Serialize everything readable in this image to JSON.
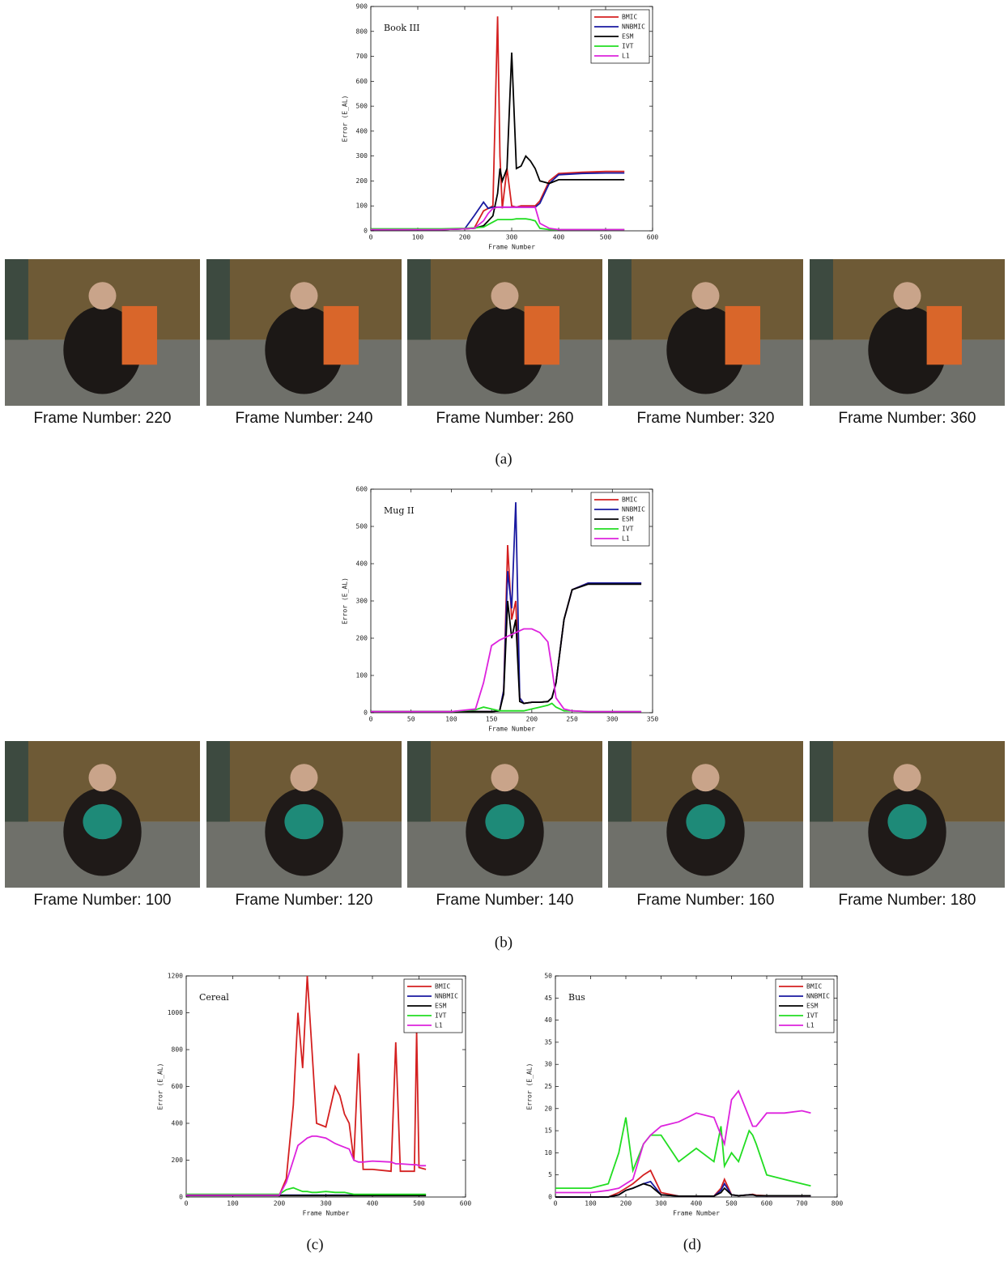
{
  "chart_data": [
    {
      "type": "line",
      "title": "Book III",
      "xlabel": "Frame Number",
      "ylabel": "Error (E_AL)",
      "xlim": [
        0,
        600
      ],
      "xticks": [
        0,
        100,
        200,
        300,
        400,
        500,
        600
      ],
      "ylim": [
        0,
        900
      ],
      "yticks": [
        0,
        100,
        200,
        300,
        400,
        500,
        600,
        700,
        800,
        900
      ],
      "legend": "upper right",
      "x": [
        0,
        50,
        100,
        150,
        200,
        220,
        240,
        250,
        260,
        270,
        275,
        280,
        290,
        300,
        310,
        320,
        330,
        340,
        350,
        360,
        380,
        400,
        450,
        500,
        540
      ],
      "series": [
        {
          "name": "BMIC",
          "color": "#d42020",
          "values": [
            5,
            5,
            5,
            5,
            8,
            10,
            80,
            90,
            100,
            860,
            300,
            90,
            250,
            100,
            95,
            100,
            100,
            100,
            100,
            120,
            200,
            230,
            235,
            238,
            238
          ]
        },
        {
          "name": "NNBMIC",
          "color": "#1a1aa0",
          "values": [
            5,
            5,
            5,
            5,
            8,
            60,
            115,
            90,
            95,
            95,
            95,
            95,
            95,
            95,
            95,
            95,
            95,
            95,
            95,
            110,
            190,
            225,
            230,
            232,
            232
          ]
        },
        {
          "name": "ESM",
          "color": "#000000",
          "values": [
            5,
            5,
            5,
            5,
            8,
            10,
            20,
            40,
            60,
            150,
            250,
            200,
            250,
            715,
            250,
            260,
            300,
            280,
            250,
            200,
            190,
            205,
            205,
            205,
            205
          ]
        },
        {
          "name": "IVT",
          "color": "#22dd22",
          "values": [
            8,
            8,
            8,
            8,
            10,
            12,
            15,
            25,
            35,
            45,
            45,
            45,
            45,
            45,
            48,
            48,
            48,
            45,
            40,
            10,
            5,
            5,
            5,
            5,
            5
          ]
        },
        {
          "name": "L1",
          "color": "#dd22dd",
          "values": [
            5,
            5,
            5,
            5,
            8,
            10,
            40,
            70,
            90,
            95,
            95,
            95,
            95,
            95,
            95,
            95,
            95,
            95,
            95,
            30,
            10,
            5,
            5,
            5,
            5
          ]
        }
      ]
    },
    {
      "type": "line",
      "title": "Mug II",
      "xlabel": "Frame Number",
      "ylabel": "Error (E_AL)",
      "xlim": [
        0,
        350
      ],
      "xticks": [
        0,
        50,
        100,
        150,
        200,
        250,
        300,
        350
      ],
      "ylim": [
        0,
        600
      ],
      "yticks": [
        0,
        100,
        200,
        300,
        400,
        500,
        600
      ],
      "legend": "upper right",
      "x": [
        0,
        50,
        100,
        130,
        140,
        150,
        160,
        165,
        170,
        175,
        180,
        185,
        190,
        200,
        210,
        220,
        225,
        230,
        240,
        250,
        270,
        300,
        336
      ],
      "series": [
        {
          "name": "BMIC",
          "color": "#d42020",
          "values": [
            3,
            3,
            3,
            3,
            3,
            3,
            5,
            60,
            450,
            250,
            300,
            40,
            25,
            28,
            28,
            30,
            40,
            80,
            250,
            330,
            348,
            348,
            348
          ]
        },
        {
          "name": "NNBMIC",
          "color": "#1a1aa0",
          "values": [
            3,
            3,
            3,
            3,
            3,
            3,
            5,
            60,
            380,
            280,
            565,
            40,
            25,
            28,
            28,
            30,
            40,
            80,
            250,
            330,
            348,
            348,
            348
          ]
        },
        {
          "name": "ESM",
          "color": "#000000",
          "values": [
            3,
            3,
            3,
            3,
            3,
            3,
            5,
            50,
            300,
            200,
            250,
            30,
            25,
            28,
            28,
            30,
            40,
            80,
            250,
            330,
            345,
            345,
            345
          ]
        },
        {
          "name": "IVT",
          "color": "#22dd22",
          "values": [
            3,
            3,
            3,
            8,
            15,
            10,
            5,
            5,
            5,
            5,
            5,
            5,
            5,
            10,
            15,
            20,
            25,
            15,
            5,
            5,
            3,
            3,
            3
          ]
        },
        {
          "name": "L1",
          "color": "#dd22dd",
          "values": [
            3,
            3,
            3,
            10,
            80,
            180,
            195,
            200,
            205,
            210,
            215,
            220,
            225,
            225,
            215,
            190,
            120,
            40,
            10,
            5,
            3,
            3,
            3
          ]
        }
      ]
    },
    {
      "type": "line",
      "title": "Cereal",
      "xlabel": "Frame Number",
      "ylabel": "Error (E_AL)",
      "xlim": [
        0,
        600
      ],
      "xticks": [
        0,
        100,
        200,
        300,
        400,
        500,
        600
      ],
      "ylim": [
        0,
        1200
      ],
      "yticks": [
        0,
        200,
        400,
        600,
        800,
        1000,
        1200
      ],
      "legend": "upper right",
      "x": [
        0,
        100,
        200,
        215,
        230,
        240,
        250,
        260,
        270,
        280,
        300,
        320,
        330,
        340,
        350,
        360,
        370,
        380,
        400,
        440,
        450,
        460,
        490,
        495,
        500,
        515
      ],
      "series": [
        {
          "name": "BMIC",
          "color": "#d42020",
          "values": [
            10,
            10,
            10,
            100,
            500,
            1000,
            700,
            1200,
            800,
            400,
            380,
            600,
            550,
            450,
            400,
            200,
            780,
            150,
            150,
            140,
            840,
            140,
            140,
            900,
            160,
            150
          ]
        },
        {
          "name": "NNBMIC",
          "color": "#1a1aa0",
          "values": [
            10,
            10,
            10,
            10,
            10,
            10,
            10,
            10,
            10,
            10,
            10,
            10,
            10,
            10,
            10,
            10,
            10,
            10,
            10,
            10,
            10,
            10,
            10,
            10,
            10,
            10
          ]
        },
        {
          "name": "ESM",
          "color": "#000000",
          "values": [
            8,
            8,
            8,
            8,
            8,
            8,
            8,
            8,
            8,
            8,
            8,
            8,
            8,
            8,
            8,
            8,
            8,
            8,
            8,
            8,
            8,
            8,
            8,
            8,
            8,
            8
          ]
        },
        {
          "name": "IVT",
          "color": "#22dd22",
          "values": [
            15,
            15,
            15,
            40,
            50,
            40,
            30,
            30,
            25,
            25,
            30,
            25,
            25,
            25,
            20,
            15,
            15,
            15,
            15,
            15,
            15,
            15,
            15,
            15,
            15,
            15
          ]
        },
        {
          "name": "L1",
          "color": "#dd22dd",
          "values": [
            10,
            10,
            10,
            80,
            200,
            280,
            300,
            320,
            330,
            330,
            320,
            290,
            280,
            270,
            260,
            200,
            190,
            190,
            195,
            190,
            180,
            180,
            175,
            175,
            170,
            170
          ]
        }
      ]
    },
    {
      "type": "line",
      "title": "Bus",
      "xlabel": "Frame Number",
      "ylabel": "Error (E_AL)",
      "xlim": [
        0,
        800
      ],
      "xticks": [
        0,
        100,
        200,
        300,
        400,
        500,
        600,
        700,
        800
      ],
      "ylim": [
        0,
        50
      ],
      "yticks": [
        0,
        5,
        10,
        15,
        20,
        25,
        30,
        35,
        40,
        45,
        50
      ],
      "legend": "upper right",
      "x": [
        0,
        50,
        100,
        150,
        180,
        200,
        220,
        250,
        270,
        300,
        350,
        400,
        450,
        470,
        480,
        500,
        520,
        550,
        560,
        570,
        600,
        650,
        700,
        725
      ],
      "series": [
        {
          "name": "BMIC",
          "color": "#d42020",
          "values": [
            0,
            0,
            0,
            0,
            1,
            2,
            3,
            5,
            6,
            1,
            0.2,
            0.2,
            0.2,
            2,
            4,
            0.5,
            0.3,
            0.5,
            0.6,
            0.4,
            0.3,
            0.3,
            0.3,
            0.3
          ]
        },
        {
          "name": "NNBMIC",
          "color": "#1a1aa0",
          "values": [
            0,
            0,
            0,
            0,
            0.5,
            1.5,
            2,
            3,
            3.5,
            0.5,
            0.2,
            0.2,
            0.2,
            1.5,
            3,
            0.5,
            0.3,
            0.5,
            0.5,
            0.3,
            0.3,
            0.3,
            0.3,
            0.3
          ]
        },
        {
          "name": "ESM",
          "color": "#000000",
          "values": [
            0,
            0,
            0,
            0,
            0.5,
            1.5,
            2,
            3,
            2.5,
            0.5,
            0.2,
            0.2,
            0.2,
            1,
            2,
            0.5,
            0.3,
            0.5,
            0.5,
            0.3,
            0.3,
            0.3,
            0.3,
            0.3
          ]
        },
        {
          "name": "IVT",
          "color": "#22dd22",
          "values": [
            2,
            2,
            2,
            3,
            10,
            18,
            6,
            12,
            14,
            14,
            8,
            11,
            8,
            16,
            7,
            10,
            8,
            15,
            14,
            12,
            5,
            4,
            3,
            2.5
          ]
        },
        {
          "name": "L1",
          "color": "#dd22dd",
          "values": [
            1,
            1,
            1,
            1.5,
            2,
            3,
            4,
            12,
            14,
            16,
            17,
            19,
            18,
            14,
            12,
            22,
            24,
            18,
            16,
            16,
            19,
            19,
            19.5,
            19
          ]
        }
      ]
    }
  ],
  "frames_a": [
    "Frame Number: 220",
    "Frame Number: 240",
    "Frame Number: 260",
    "Frame Number: 320",
    "Frame Number: 360"
  ],
  "frames_b": [
    "Frame Number: 100",
    "Frame Number: 120",
    "Frame Number: 140",
    "Frame Number: 160",
    "Frame Number: 180"
  ],
  "labels": [
    "(a)",
    "(b)",
    "(c)",
    "(d)"
  ]
}
